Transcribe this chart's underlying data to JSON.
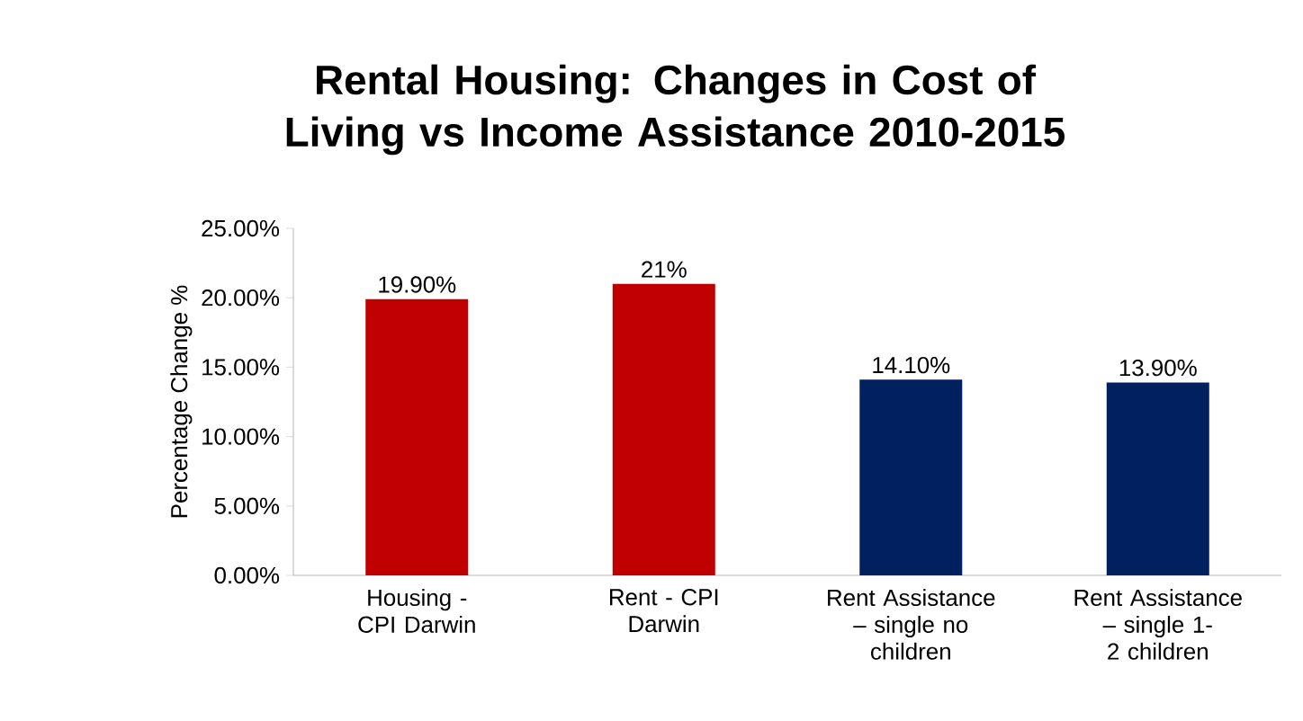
{
  "chart_data": {
    "type": "bar",
    "title": "Rental Housing: Changes in Cost of Living vs Income Assistance 2010-2015",
    "ylabel": "Percentage Change %",
    "categories": [
      "Housing - CPI Darwin",
      "Rent - CPI Darwin",
      "Rent Assistance – single no children",
      "Rent Assistance – single 1-2 children"
    ],
    "values": [
      19.9,
      21,
      14.1,
      13.9
    ],
    "colors": [
      "#c00000",
      "#c00000",
      "#002060",
      "#002060"
    ],
    "value_labels": [
      "19.90%",
      "21%",
      "14.10%",
      "13.90%"
    ],
    "ylim": [
      0,
      25
    ],
    "yticks": [
      {
        "value": 0,
        "label": "0.00%"
      },
      {
        "value": 5,
        "label": "5.00%"
      },
      {
        "value": 10,
        "label": "10.00%"
      },
      {
        "value": 15,
        "label": "15.00%"
      },
      {
        "value": 20,
        "label": "20.00%"
      },
      {
        "value": 25,
        "label": "25.00%"
      }
    ]
  }
}
